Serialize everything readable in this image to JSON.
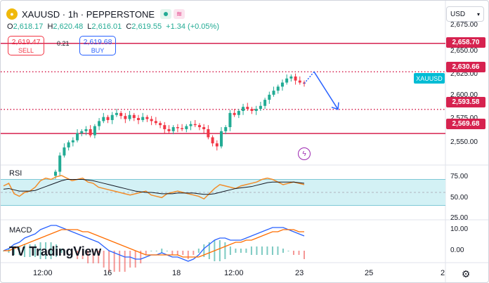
{
  "header": {
    "title": "XAUUSD · 1h · PEPPERSTONE",
    "symbol_icon": "gold-coin-icon",
    "status_dot_icon": "market-open-dot-icon",
    "wave_icon": "replay-wave-icon"
  },
  "ohlc": {
    "o_label": "O",
    "o_value": "2,618.17",
    "h_label": "H",
    "h_value": "2,620.48",
    "l_label": "L",
    "l_value": "2,616.01",
    "c_label": "C",
    "c_value": "2,619.55",
    "change": "+1.34 (+0.05%)"
  },
  "trade": {
    "sell_price": "2,619.47",
    "sell_label": "SELL",
    "spread": "0.21",
    "buy_price": "2,619.68",
    "buy_label": "BUY"
  },
  "currency_selector": {
    "label": "USD",
    "icon": "chevron-down-icon"
  },
  "price_axis": {
    "labels": [
      "2,675.00",
      "2,650.00",
      "2,625.00",
      "2,600.00",
      "2,575.00",
      "2,550.00"
    ],
    "level_tags": [
      "2,658.70",
      "2,630.66",
      "2,593.58",
      "2,569.68"
    ],
    "symbol_tag": "XAUUSD"
  },
  "rsi": {
    "label": "RSI",
    "axis": [
      "75.00",
      "50.00",
      "25.00"
    ]
  },
  "macd": {
    "label": "MACD",
    "axis": [
      "10.00",
      "0.00"
    ]
  },
  "time_axis": [
    "12:00",
    "16",
    "18",
    "12:00",
    "23",
    "25",
    "2"
  ],
  "branding": {
    "logo_text": "TradingView",
    "logo_mark": "TV",
    "settings_icon": "gear-icon",
    "alert_icon": "lightning-bolt-icon"
  },
  "colors": {
    "up": "#22ab94",
    "down": "#f23645",
    "level": "#d6224f",
    "arrow": "#2962ff",
    "rsi_line": "#f28c28",
    "rsi_ma": "#131722",
    "rsi_band": "#d3f1f5",
    "macd_line": "#2962ff",
    "signal_line": "#ff6d00"
  },
  "chart_data": {
    "type": "candlestick",
    "price_levels": [
      2658.7,
      2630.66,
      2593.58,
      2569.68
    ],
    "ylim": [
      2540,
      2680
    ],
    "candles_close": [
      2532,
      2548,
      2556,
      2561,
      2563,
      2570,
      2572,
      2574,
      2568,
      2577,
      2582,
      2586,
      2583,
      2588,
      2590,
      2587,
      2584,
      2588,
      2585,
      2583,
      2586,
      2584,
      2582,
      2580,
      2578,
      2574,
      2572,
      2576,
      2575,
      2574,
      2577,
      2579,
      2578,
      2576,
      2574,
      2566,
      2560,
      2557,
      2572,
      2576,
      2590,
      2588,
      2592,
      2596,
      2594,
      2592,
      2594,
      2597,
      2603,
      2608,
      2612,
      2616,
      2620,
      2624,
      2626,
      2622,
      2620,
      2619
    ],
    "projection": {
      "from": 2630.66,
      "to": 2593.58
    },
    "rsi_values": [
      60,
      64,
      48,
      44,
      50,
      52,
      58,
      68,
      72,
      70,
      74,
      76,
      72,
      68,
      70,
      72,
      66,
      64,
      58,
      56,
      54,
      52,
      50,
      48,
      46,
      48,
      50,
      52,
      46,
      44,
      42,
      48,
      50,
      52,
      50,
      48,
      46,
      44,
      40,
      48,
      56,
      62,
      60,
      58,
      56,
      60,
      62,
      64,
      66,
      70,
      72,
      70,
      66,
      62,
      64,
      66,
      64,
      62
    ],
    "rsi_ma": [
      55,
      56,
      54,
      52,
      52,
      52,
      53,
      56,
      59,
      62,
      65,
      68,
      70,
      70,
      70,
      70,
      69,
      68,
      66,
      64,
      62,
      60,
      58,
      56,
      54,
      52,
      51,
      50,
      50,
      49,
      48,
      48,
      48,
      49,
      49,
      49,
      49,
      48,
      47,
      47,
      48,
      50,
      52,
      54,
      56,
      57,
      58,
      59,
      61,
      63,
      65,
      66,
      66,
      66,
      66,
      66,
      65,
      64
    ],
    "macd_values": [
      0,
      1,
      3,
      4,
      6,
      7,
      8,
      10,
      11,
      12,
      12,
      11,
      10,
      9,
      8,
      7,
      6,
      5,
      4,
      2,
      0,
      -1,
      -2,
      -3,
      -3,
      -4,
      -4,
      -3,
      -2,
      -2,
      -1,
      -2,
      -3,
      -3,
      -4,
      -5,
      -4,
      -2,
      1,
      3,
      5,
      6,
      6,
      5,
      5,
      5,
      6,
      7,
      8,
      9,
      10,
      11,
      11,
      11,
      10,
      9,
      8,
      7
    ],
    "signal_values": [
      0,
      0,
      1,
      2,
      3,
      4,
      5,
      6,
      7,
      8,
      9,
      10,
      10,
      10,
      10,
      9,
      9,
      8,
      7,
      6,
      5,
      4,
      3,
      2,
      1,
      0,
      -1,
      -2,
      -2,
      -2,
      -2,
      -2,
      -2,
      -2,
      -3,
      -3,
      -3,
      -3,
      -2,
      -1,
      0,
      1,
      2,
      3,
      4,
      4,
      5,
      5,
      6,
      7,
      8,
      9,
      9,
      10,
      10,
      10,
      9,
      9
    ]
  }
}
